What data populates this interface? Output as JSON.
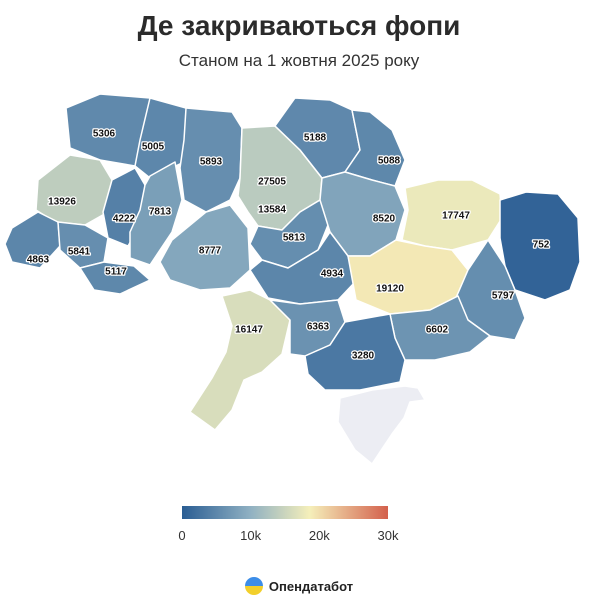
{
  "title": "Де закриваються фопи",
  "subtitle": "Станом на 1 жовтня 2025 року",
  "brand": {
    "name": "Опендатабот",
    "logo_icon": "opendatabot-logo-icon"
  },
  "legend": {
    "ticks": [
      "0",
      "10k",
      "20k",
      "30k"
    ],
    "min": 0,
    "max": 30000,
    "colors": [
      "#2a5d93",
      "#8fb0c2",
      "#f5efba",
      "#d3604c"
    ]
  },
  "chart_data": {
    "type": "choropleth",
    "regions": [
      {
        "value": 5306
      },
      {
        "value": 5005
      },
      {
        "value": 13926
      },
      {
        "value": 4222
      },
      {
        "value": 4863
      },
      {
        "value": 5841
      },
      {
        "value": 5117
      },
      {
        "value": 7813
      },
      {
        "value": 5893
      },
      {
        "value": 8777
      },
      {
        "value": 27505
      },
      {
        "value": 13584
      },
      {
        "value": 5813
      },
      {
        "value": 5188
      },
      {
        "value": 5088
      },
      {
        "value": 8520
      },
      {
        "value": 17747
      },
      {
        "value": 752
      },
      {
        "value": 4934
      },
      {
        "value": 19120
      },
      {
        "value": 5797
      },
      {
        "value": 16147
      },
      {
        "value": 6363
      },
      {
        "value": 6602
      },
      {
        "value": 3280
      }
    ],
    "no_data_region_color": "#ecedf3"
  }
}
